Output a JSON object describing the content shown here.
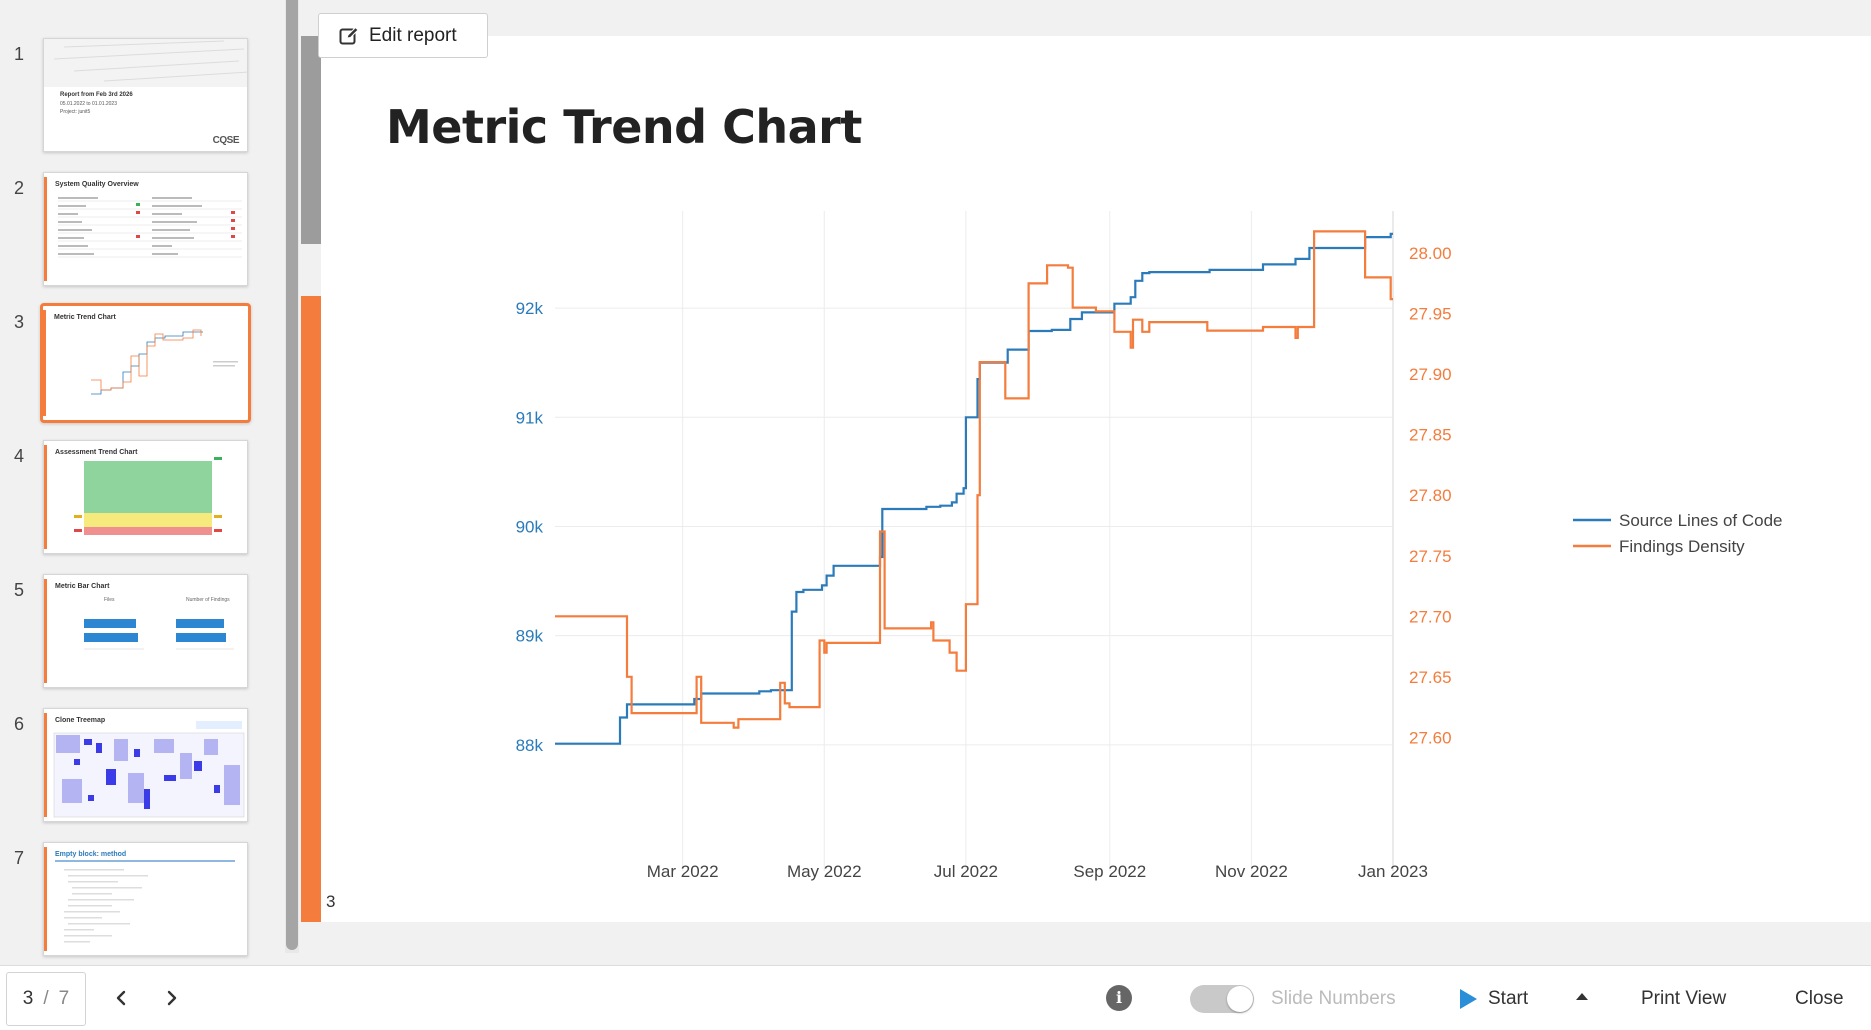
{
  "slides": [
    {
      "number": "1",
      "title": "Report from Feb 3rd 2026",
      "line1": "05.01.2022 to 01.01.2023",
      "line2": "Project: junit5",
      "logo": "CQSE"
    },
    {
      "number": "2",
      "title": "System Quality Overview"
    },
    {
      "number": "3",
      "title": "Metric Trend Chart"
    },
    {
      "number": "4",
      "title": "Assessment Trend Chart"
    },
    {
      "number": "5",
      "title": "Metric Bar Chart",
      "col1": "Files",
      "col2": "Number of Findings"
    },
    {
      "number": "6",
      "title": "Clone Treemap"
    },
    {
      "number": "7",
      "title": "Empty block: method"
    }
  ],
  "active_slide": 3,
  "edit_report_label": "Edit report",
  "slide": {
    "title": "Metric Trend Chart",
    "number": "3"
  },
  "chart_data": {
    "type": "line",
    "title": "",
    "x_ticks": [
      "Mar 2022",
      "May 2022",
      "Jul 2022",
      "Sep 2022",
      "Nov 2022",
      "Jan 2023"
    ],
    "x_tick_dates": [
      "2022-03-01",
      "2022-05-01",
      "2022-07-01",
      "2022-09-01",
      "2022-11-01",
      "2023-01-01"
    ],
    "xlim": [
      "2022-01-05",
      "2023-01-01"
    ],
    "y_left": {
      "ticks": [
        "88k",
        "89k",
        "90k",
        "91k",
        "92k"
      ],
      "tick_values": [
        88000,
        89000,
        90000,
        91000,
        92000
      ],
      "range": [
        87980,
        92880
      ],
      "color": "#2b7bba"
    },
    "y_right": {
      "ticks": [
        "27.60",
        "27.65",
        "27.70",
        "27.75",
        "27.80",
        "27.85",
        "27.90",
        "27.95",
        "28.00"
      ],
      "tick_values": [
        27.6,
        27.65,
        27.7,
        27.75,
        27.8,
        27.85,
        27.9,
        27.95,
        28.0
      ],
      "range": [
        27.592,
        28.034
      ],
      "color": "#f47c3c"
    },
    "grid": true,
    "legend": "right",
    "series": [
      {
        "name": "Source Lines of Code",
        "axis": "left",
        "color": "#2b7bba",
        "step": true,
        "points": [
          [
            "2022-01-05",
            88010
          ],
          [
            "2022-02-02",
            88010
          ],
          [
            "2022-02-02",
            88250
          ],
          [
            "2022-02-05",
            88250
          ],
          [
            "2022-02-05",
            88370
          ],
          [
            "2022-03-06",
            88370
          ],
          [
            "2022-03-06",
            88420
          ],
          [
            "2022-03-09",
            88420
          ],
          [
            "2022-03-09",
            88470
          ],
          [
            "2022-04-03",
            88470
          ],
          [
            "2022-04-03",
            88490
          ],
          [
            "2022-04-08",
            88490
          ],
          [
            "2022-04-08",
            88500
          ],
          [
            "2022-04-17",
            88500
          ],
          [
            "2022-04-17",
            89220
          ],
          [
            "2022-04-19",
            89220
          ],
          [
            "2022-04-19",
            89400
          ],
          [
            "2022-04-22",
            89400
          ],
          [
            "2022-04-22",
            89420
          ],
          [
            "2022-04-30",
            89420
          ],
          [
            "2022-04-30",
            89460
          ],
          [
            "2022-05-02",
            89460
          ],
          [
            "2022-05-02",
            89550
          ],
          [
            "2022-05-05",
            89550
          ],
          [
            "2022-05-05",
            89640
          ],
          [
            "2022-05-25",
            89640
          ],
          [
            "2022-05-25",
            89720
          ],
          [
            "2022-05-26",
            89720
          ],
          [
            "2022-05-26",
            90160
          ],
          [
            "2022-06-14",
            90160
          ],
          [
            "2022-06-14",
            90180
          ],
          [
            "2022-06-20",
            90180
          ],
          [
            "2022-06-20",
            90190
          ],
          [
            "2022-06-25",
            90190
          ],
          [
            "2022-06-25",
            90220
          ],
          [
            "2022-06-27",
            90220
          ],
          [
            "2022-06-27",
            90300
          ],
          [
            "2022-06-30",
            90300
          ],
          [
            "2022-06-30",
            90350
          ],
          [
            "2022-07-01",
            90350
          ],
          [
            "2022-07-01",
            91000
          ],
          [
            "2022-07-06",
            91000
          ],
          [
            "2022-07-06",
            91350
          ],
          [
            "2022-07-07",
            91350
          ],
          [
            "2022-07-07",
            91500
          ],
          [
            "2022-07-19",
            91500
          ],
          [
            "2022-07-19",
            91620
          ],
          [
            "2022-07-28",
            91620
          ],
          [
            "2022-07-28",
            91790
          ],
          [
            "2022-08-07",
            91790
          ],
          [
            "2022-08-07",
            91800
          ],
          [
            "2022-08-15",
            91800
          ],
          [
            "2022-08-15",
            91900
          ],
          [
            "2022-08-20",
            91900
          ],
          [
            "2022-08-20",
            91960
          ],
          [
            "2022-09-03",
            91960
          ],
          [
            "2022-09-03",
            92040
          ],
          [
            "2022-09-10",
            92040
          ],
          [
            "2022-09-10",
            92100
          ],
          [
            "2022-09-12",
            92100
          ],
          [
            "2022-09-12",
            92250
          ],
          [
            "2022-09-15",
            92250
          ],
          [
            "2022-09-15",
            92320
          ],
          [
            "2022-09-18",
            92320
          ],
          [
            "2022-09-18",
            92330
          ],
          [
            "2022-10-14",
            92330
          ],
          [
            "2022-10-14",
            92350
          ],
          [
            "2022-11-06",
            92350
          ],
          [
            "2022-11-06",
            92400
          ],
          [
            "2022-11-20",
            92400
          ],
          [
            "2022-11-20",
            92450
          ],
          [
            "2022-11-26",
            92450
          ],
          [
            "2022-11-26",
            92550
          ],
          [
            "2022-12-20",
            92550
          ],
          [
            "2022-12-20",
            92650
          ],
          [
            "2022-12-31",
            92650
          ],
          [
            "2022-12-31",
            92680
          ],
          [
            "2023-01-01",
            92680
          ]
        ]
      },
      {
        "name": "Findings Density",
        "axis": "right",
        "color": "#f47c3c",
        "step": true,
        "points": [
          [
            "2022-01-05",
            27.7
          ],
          [
            "2022-02-05",
            27.7
          ],
          [
            "2022-02-05",
            27.65
          ],
          [
            "2022-02-07",
            27.65
          ],
          [
            "2022-02-07",
            27.62
          ],
          [
            "2022-03-07",
            27.62
          ],
          [
            "2022-03-07",
            27.65
          ],
          [
            "2022-03-09",
            27.65
          ],
          [
            "2022-03-09",
            27.612
          ],
          [
            "2022-03-23",
            27.612
          ],
          [
            "2022-03-23",
            27.608
          ],
          [
            "2022-03-25",
            27.608
          ],
          [
            "2022-03-25",
            27.615
          ],
          [
            "2022-04-12",
            27.615
          ],
          [
            "2022-04-12",
            27.645
          ],
          [
            "2022-04-14",
            27.645
          ],
          [
            "2022-04-14",
            27.628
          ],
          [
            "2022-04-16",
            27.628
          ],
          [
            "2022-04-16",
            27.625
          ],
          [
            "2022-04-29",
            27.625
          ],
          [
            "2022-04-29",
            27.68
          ],
          [
            "2022-05-01",
            27.68
          ],
          [
            "2022-05-01",
            27.67
          ],
          [
            "2022-05-02",
            27.67
          ],
          [
            "2022-05-02",
            27.678
          ],
          [
            "2022-05-25",
            27.678
          ],
          [
            "2022-05-25",
            27.77
          ],
          [
            "2022-05-27",
            27.77
          ],
          [
            "2022-05-27",
            27.69
          ],
          [
            "2022-06-16",
            27.69
          ],
          [
            "2022-06-16",
            27.695
          ],
          [
            "2022-06-17",
            27.695
          ],
          [
            "2022-06-17",
            27.68
          ],
          [
            "2022-06-24",
            27.68
          ],
          [
            "2022-06-24",
            27.67
          ],
          [
            "2022-06-27",
            27.67
          ],
          [
            "2022-06-27",
            27.655
          ],
          [
            "2022-07-01",
            27.655
          ],
          [
            "2022-07-01",
            27.71
          ],
          [
            "2022-07-06",
            27.71
          ],
          [
            "2022-07-06",
            27.8
          ],
          [
            "2022-07-07",
            27.8
          ],
          [
            "2022-07-07",
            27.91
          ],
          [
            "2022-07-18",
            27.91
          ],
          [
            "2022-07-18",
            27.88
          ],
          [
            "2022-07-28",
            27.88
          ],
          [
            "2022-07-28",
            27.975
          ],
          [
            "2022-08-05",
            27.975
          ],
          [
            "2022-08-05",
            27.99
          ],
          [
            "2022-08-14",
            27.99
          ],
          [
            "2022-08-14",
            27.988
          ],
          [
            "2022-08-16",
            27.988
          ],
          [
            "2022-08-16",
            27.955
          ],
          [
            "2022-08-26",
            27.955
          ],
          [
            "2022-08-26",
            27.952
          ],
          [
            "2022-09-03",
            27.952
          ],
          [
            "2022-09-03",
            27.935
          ],
          [
            "2022-09-10",
            27.935
          ],
          [
            "2022-09-10",
            27.922
          ],
          [
            "2022-09-11",
            27.922
          ],
          [
            "2022-09-11",
            27.945
          ],
          [
            "2022-09-15",
            27.945
          ],
          [
            "2022-09-15",
            27.935
          ],
          [
            "2022-09-18",
            27.935
          ],
          [
            "2022-09-18",
            27.943
          ],
          [
            "2022-10-13",
            27.943
          ],
          [
            "2022-10-13",
            27.936
          ],
          [
            "2022-11-06",
            27.936
          ],
          [
            "2022-11-06",
            27.939
          ],
          [
            "2022-11-20",
            27.939
          ],
          [
            "2022-11-20",
            27.93
          ],
          [
            "2022-11-21",
            27.93
          ],
          [
            "2022-11-21",
            27.939
          ],
          [
            "2022-11-28",
            27.939
          ],
          [
            "2022-11-28",
            28.018
          ],
          [
            "2022-12-20",
            28.018
          ],
          [
            "2022-12-20",
            27.98
          ],
          [
            "2022-12-31",
            27.98
          ],
          [
            "2022-12-31",
            27.962
          ],
          [
            "2023-01-01",
            27.962
          ]
        ]
      }
    ]
  },
  "toolbar": {
    "current_page": "3",
    "separator": "/",
    "total_pages": "7",
    "slide_numbers_label": "Slide Numbers",
    "start_label": "Start",
    "print_view_label": "Print View",
    "close_label": "Close"
  },
  "icons": {
    "edit": "edit-icon",
    "prev": "chevron-left-icon",
    "next": "chevron-right-icon",
    "info": "info-icon",
    "start": "play-icon",
    "start_menu": "caret-up-icon"
  },
  "colors": {
    "accent": "#f47c3c",
    "sloc": "#2b7bba",
    "start": "#2b8ed8"
  }
}
